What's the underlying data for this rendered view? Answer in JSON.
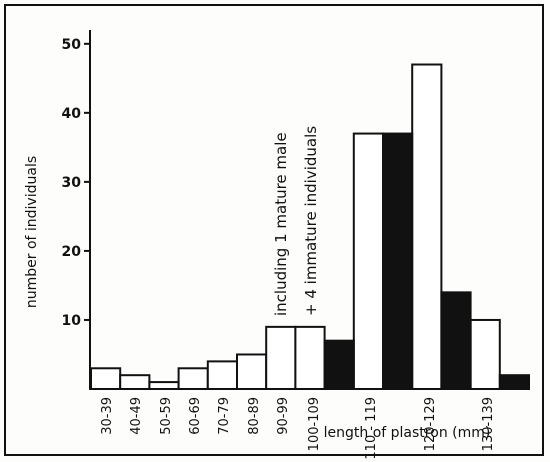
{
  "chart_data": {
    "type": "bar",
    "title": "",
    "xlabel": "length of plastron (mm)",
    "ylabel": "number of individuals",
    "ylim": [
      0,
      52
    ],
    "yticks": [
      10,
      20,
      30,
      40,
      50
    ],
    "grid": false,
    "categories": [
      "30-39",
      "40-49",
      "50-59",
      "60-69",
      "70-79",
      "80-89",
      "90-99",
      "100-109",
      "110 - 119",
      "120-129",
      "130-139"
    ],
    "series": [
      {
        "fill": "white",
        "values": [
          3,
          2,
          1,
          3,
          4,
          5,
          9,
          9,
          37,
          47,
          10
        ]
      },
      {
        "fill": "black",
        "values": [
          null,
          null,
          null,
          null,
          null,
          null,
          null,
          7,
          37,
          14,
          2
        ]
      }
    ],
    "annotations": [
      {
        "text": "including 1 mature male",
        "category": "90-99"
      },
      {
        "text": "+ 4  immature  individuals",
        "category": "100-109"
      }
    ]
  }
}
